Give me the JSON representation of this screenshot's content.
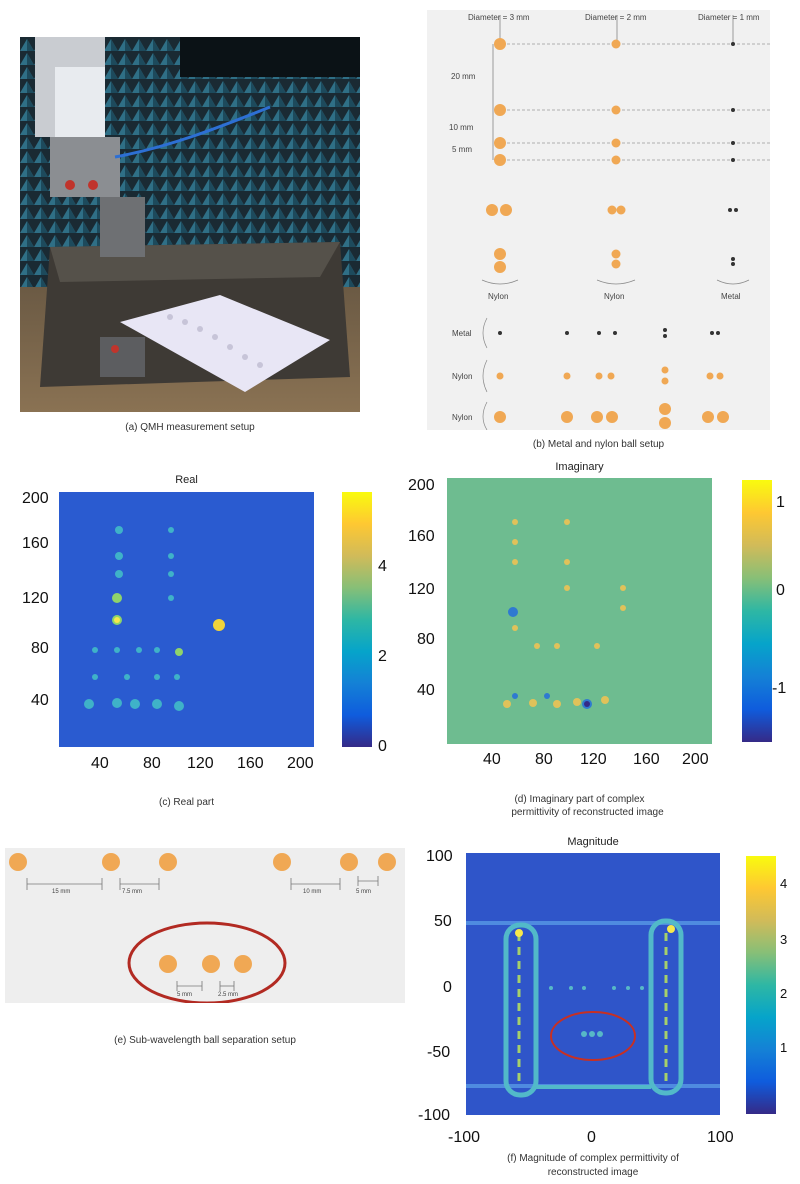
{
  "panels": {
    "a": {
      "caption": "(a) QMH measurement setup"
    },
    "b": {
      "caption": "(b) Metal and nylon ball setup",
      "diameters": [
        "Diameter = 3 mm",
        "Diameter = 2 mm",
        "Diameter = 1 mm"
      ],
      "spacings": [
        "20 mm",
        "10 mm",
        "5 mm"
      ],
      "group_labels": [
        "Nylon",
        "Nylon",
        "Metal"
      ],
      "row_labels": [
        "Metal",
        "Nylon",
        "Nylon"
      ]
    },
    "c": {
      "title": "Real",
      "caption": "(c) Real part",
      "xticks": [
        "40",
        "80",
        "120",
        "160",
        "200"
      ],
      "yticks": [
        "200",
        "160",
        "120",
        "80",
        "40"
      ],
      "colorbar_ticks": [
        "4",
        "2",
        "0"
      ]
    },
    "d": {
      "title": "Imaginary",
      "caption_line1": "(d) Imaginary part of complex",
      "caption_line2": "permittivity of reconstructed image",
      "xticks": [
        "40",
        "80",
        "120",
        "160",
        "200"
      ],
      "yticks": [
        "200",
        "160",
        "120",
        "80",
        "40"
      ],
      "colorbar_ticks": [
        "1",
        "0",
        "-1"
      ]
    },
    "e": {
      "caption": "(e) Sub-wavelength ball separation setup",
      "labels": [
        "15 mm",
        "7.5 mm",
        "10 mm",
        "5 mm",
        "5 mm",
        "2.5 mm"
      ]
    },
    "f": {
      "title": "Magnitude",
      "caption_line1": "(f) Magnitude of complex permittivity of",
      "caption_line2": "reconstructed image",
      "xticks": [
        "-100",
        "0",
        "100"
      ],
      "yticks": [
        "100",
        "50",
        "0",
        "-50",
        "-100"
      ],
      "colorbar_ticks": [
        "4",
        "3",
        "2",
        "1"
      ]
    }
  },
  "colors": {
    "nylon": "#f0a854",
    "metal": "#333333",
    "parula_low": "#352a87",
    "parula_high": "#f9fb0e",
    "ellipse": "#c0392b"
  }
}
